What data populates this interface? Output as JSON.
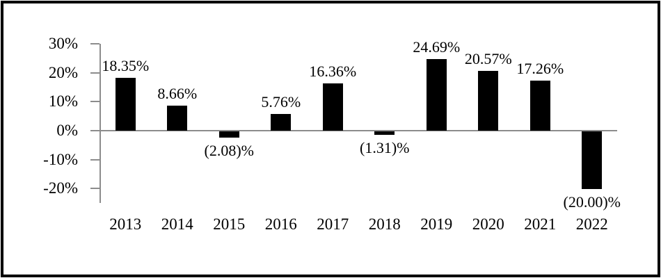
{
  "chart_data": {
    "type": "bar",
    "categories": [
      "2013",
      "2014",
      "2015",
      "2016",
      "2017",
      "2018",
      "2019",
      "2020",
      "2021",
      "2022"
    ],
    "values": [
      18.35,
      8.66,
      -2.08,
      5.76,
      16.36,
      -1.31,
      24.69,
      20.57,
      17.26,
      -20.0
    ],
    "data_labels": [
      "18.35%",
      "8.66%",
      "(2.08)%",
      "5.76%",
      "16.36%",
      "(1.31)%",
      "24.69%",
      "20.57%",
      "17.26%",
      "(20.00)%"
    ],
    "y_ticks": [
      {
        "value": 30,
        "label": "30%"
      },
      {
        "value": 20,
        "label": "20%"
      },
      {
        "value": 10,
        "label": "10%"
      },
      {
        "value": 0,
        "label": "0%"
      },
      {
        "value": -10,
        "label": "-10%"
      },
      {
        "value": -20,
        "label": "-20%"
      }
    ],
    "ylim": [
      -25,
      30
    ],
    "xlabel": "",
    "ylabel": "",
    "grid": false,
    "legend": false,
    "data_label_position": "outside-end",
    "bar_color": "#000000",
    "axis_color": "#8c8c8c",
    "text_color": "#000000",
    "frame_color": "#000000",
    "background": "#ffffff"
  }
}
